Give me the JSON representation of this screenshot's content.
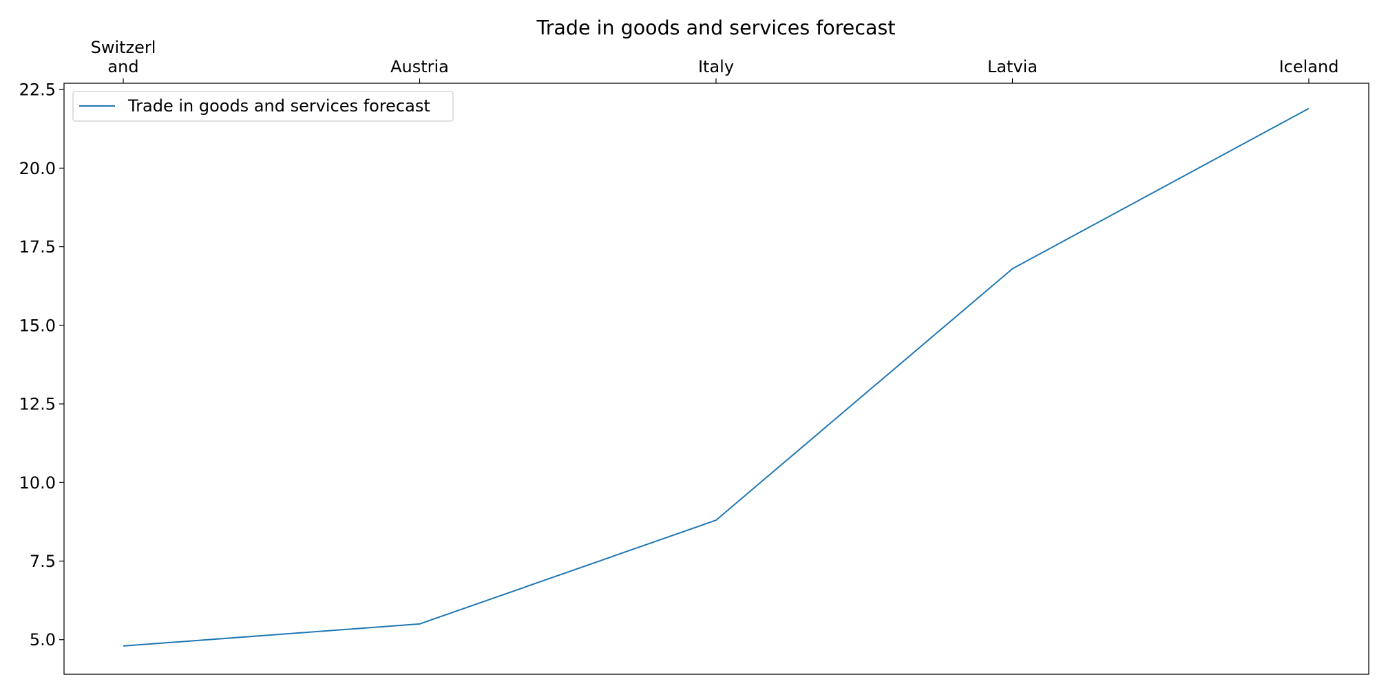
{
  "chart_data": {
    "type": "line",
    "title": "Trade in goods and services forecast",
    "xlabel": "",
    "ylabel": "",
    "categories": [
      "Switzerland",
      "Austria",
      "Italy",
      "Latvia",
      "Iceland"
    ],
    "category_labels": [
      [
        "Switzerl",
        "and"
      ],
      [
        "Austria"
      ],
      [
        "Italy"
      ],
      [
        "Latvia"
      ],
      [
        "Iceland"
      ]
    ],
    "series": [
      {
        "name": "Trade in goods and services forecast",
        "values": [
          4.8,
          5.5,
          8.8,
          16.8,
          21.9
        ],
        "color": "#1f77b4"
      }
    ],
    "ylim": [
      3.9,
      22.7
    ],
    "yticks": [
      5.0,
      7.5,
      10.0,
      12.5,
      15.0,
      17.5,
      20.0,
      22.5
    ],
    "ytick_labels": [
      "5.0",
      "7.5",
      "10.0",
      "12.5",
      "15.0",
      "17.5",
      "20.0",
      "22.5"
    ],
    "x_axis_position": "top",
    "grid": false,
    "legend_position": "upper-left"
  }
}
